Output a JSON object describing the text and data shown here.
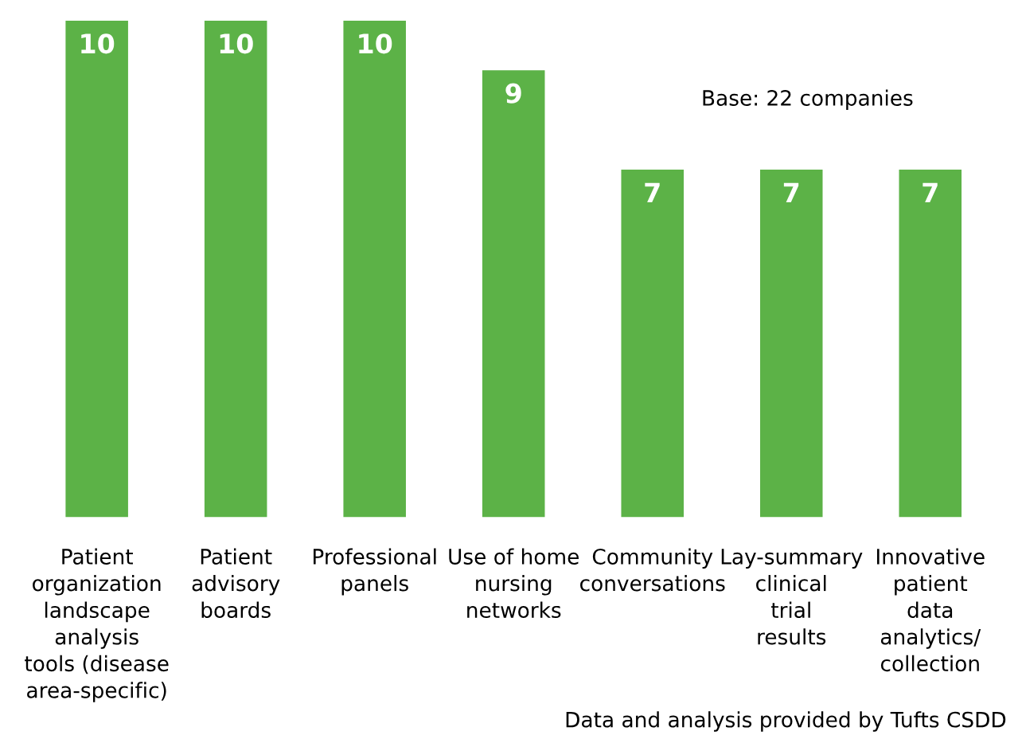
{
  "chart_data": {
    "type": "bar",
    "categories": [
      "Patient\norganization\nlandscape\nanalysis\ntools (disease\narea-specific)",
      "Patient\nadvisory\nboards",
      "Professional\npanels",
      "Use of home\nnursing\nnetworks",
      "Community\nconversations",
      "Lay-summary\nclinical\ntrial\nresults",
      "Innovative\npatient\ndata\nanalytics/\ncollection"
    ],
    "values": [
      10,
      10,
      10,
      9,
      7,
      7,
      7
    ],
    "color": "#5cb247",
    "ylim": [
      0,
      10
    ],
    "data_labels": true,
    "tick_labels": "x",
    "grid": false,
    "annotations": [
      "Base: 22 companies",
      "Data and analysis provided by Tufts CSDD"
    ]
  }
}
